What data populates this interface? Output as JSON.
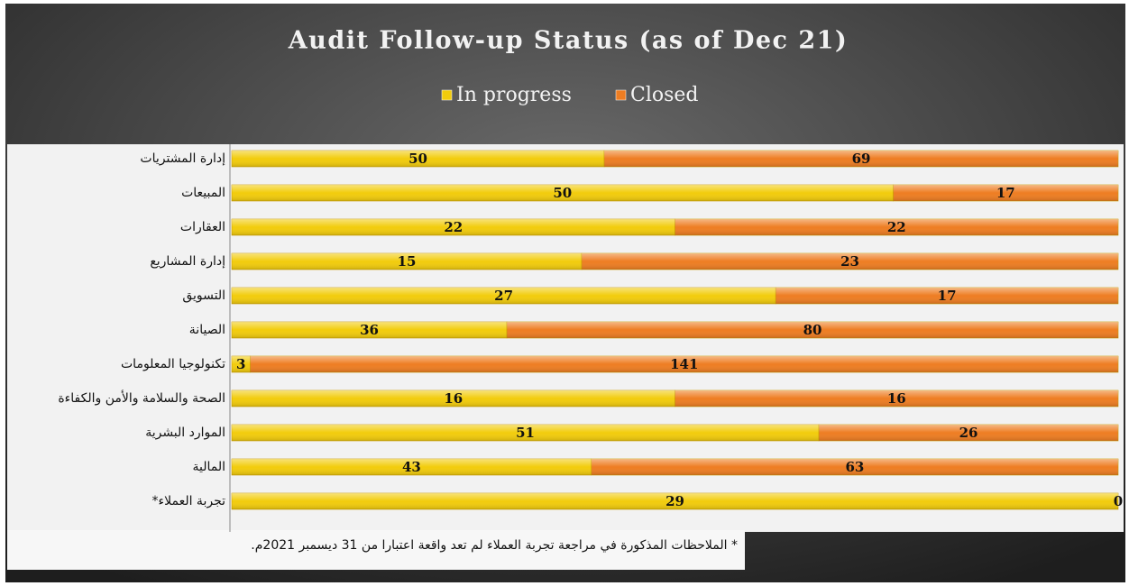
{
  "chart_data": {
    "type": "bar",
    "orientation": "horizontal",
    "stacking": "percent",
    "title": "Audit Follow-up Status (as of Dec 21)",
    "categories": [
      "إدارة المشتريات",
      "المبيعات",
      "العقارات",
      "إدارة المشاريع",
      "التسويق",
      "الصيانة",
      "تكنولوجيا المعلومات",
      "الصحة والسلامة والأمن والكفاءة",
      "الموارد البشرية",
      "المالية",
      "تجربة العملاء*"
    ],
    "series": [
      {
        "name": "In progress",
        "color": "#f2cc0c",
        "values": [
          50,
          50,
          22,
          15,
          27,
          36,
          3,
          16,
          51,
          43,
          29
        ]
      },
      {
        "name": "Closed",
        "color": "#ee7d22",
        "values": [
          69,
          17,
          22,
          23,
          17,
          80,
          141,
          16,
          26,
          63,
          0
        ]
      }
    ],
    "legend": "top",
    "annotations": [
      "* الملاحظات المذكورة في مراجعة تجربة العملاء لم تعد واقعة اعتبارا من 31 ديسمبر 2021م."
    ]
  }
}
